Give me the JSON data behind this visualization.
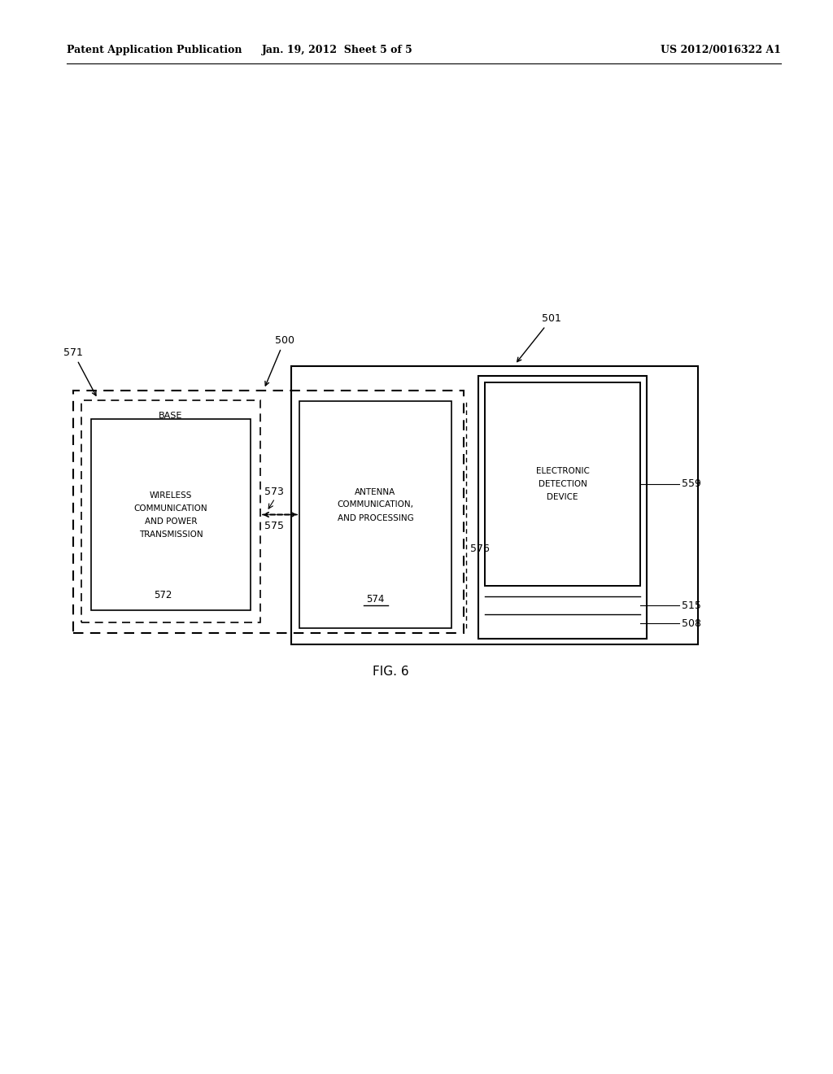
{
  "bg_color": "#ffffff",
  "header_left": "Patent Application Publication",
  "header_center": "Jan. 19, 2012  Sheet 5 of 5",
  "header_right": "US 2012/0016322 A1",
  "fig_label": "FIG. 6",
  "label_500": "500",
  "label_501": "501",
  "label_571": "571",
  "label_572": "572",
  "label_573": "573",
  "label_574": "574",
  "label_575": "575",
  "label_576": "576",
  "label_559": "559",
  "label_515": "515",
  "label_508": "508",
  "box_base_text": "BASE",
  "box_wireless_text_lines": [
    "WIRELESS",
    "COMMUNICATION",
    "AND POWER",
    "TRANSMISSION"
  ],
  "box_antenna_text_lines": [
    "ANTENNA",
    "COMMUNICATION,",
    "AND PROCESSING"
  ],
  "box_antenna_underline_label": "574",
  "box_electronic_text_lines": [
    "ELECTRONIC",
    "DETECTION",
    "DEVICE"
  ]
}
